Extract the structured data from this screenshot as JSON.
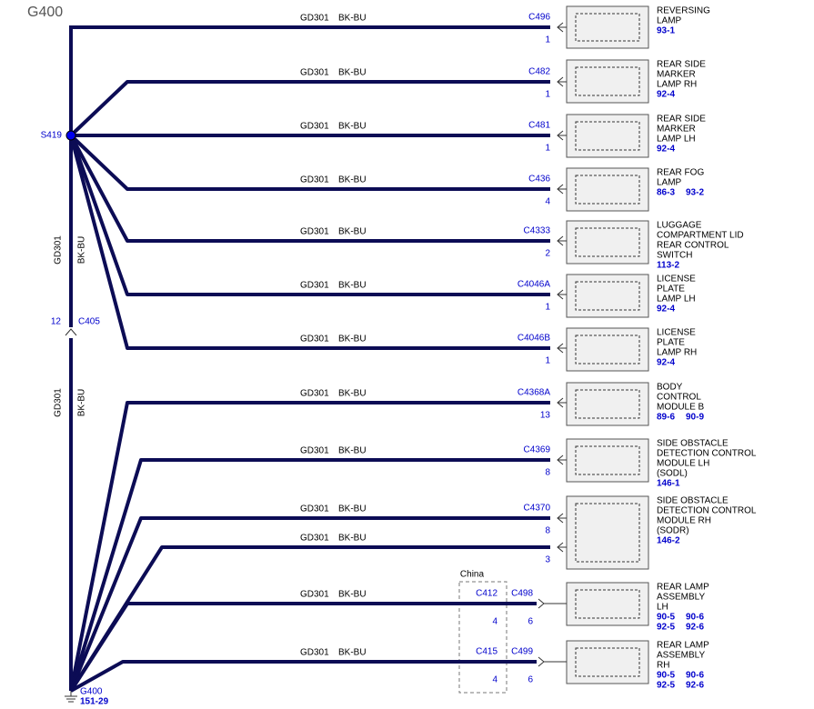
{
  "title": "G400",
  "splice": "S419",
  "trunk": {
    "upper": {
      "circuit": "GD301",
      "color": "BK-BU"
    },
    "connector": {
      "pin": "12",
      "name": "C405"
    },
    "lower": {
      "circuit": "GD301",
      "color": "BK-BU"
    }
  },
  "ground": {
    "name": "G400",
    "ref": "151-29"
  },
  "option_box": "China",
  "components": [
    {
      "label": [
        "REVERSING",
        "LAMP"
      ],
      "refs": [
        "93-1"
      ],
      "wires": [
        {
          "circuit": "GD301",
          "color": "BK-BU",
          "connector": "C496",
          "pin": "1"
        }
      ]
    },
    {
      "label": [
        "REAR SIDE",
        "MARKER",
        "LAMP RH"
      ],
      "refs": [
        "92-4"
      ],
      "wires": [
        {
          "circuit": "GD301",
          "color": "BK-BU",
          "connector": "C482",
          "pin": "1"
        }
      ]
    },
    {
      "label": [
        "REAR SIDE",
        "MARKER",
        "LAMP LH"
      ],
      "refs": [
        "92-4"
      ],
      "wires": [
        {
          "circuit": "GD301",
          "color": "BK-BU",
          "connector": "C481",
          "pin": "1"
        }
      ]
    },
    {
      "label": [
        "REAR FOG",
        "LAMP"
      ],
      "refs": [
        "86-3",
        "93-2"
      ],
      "wires": [
        {
          "circuit": "GD301",
          "color": "BK-BU",
          "connector": "C436",
          "pin": "4"
        }
      ]
    },
    {
      "label": [
        "LUGGAGE",
        "COMPARTMENT LID",
        "REAR CONTROL",
        "SWITCH"
      ],
      "refs": [
        "113-2"
      ],
      "wires": [
        {
          "circuit": "GD301",
          "color": "BK-BU",
          "connector": "C4333",
          "pin": "2"
        }
      ]
    },
    {
      "label": [
        "LICENSE",
        "PLATE",
        "LAMP LH"
      ],
      "refs": [
        "92-4"
      ],
      "wires": [
        {
          "circuit": "GD301",
          "color": "BK-BU",
          "connector": "C4046A",
          "pin": "1"
        }
      ]
    },
    {
      "label": [
        "LICENSE",
        "PLATE",
        "LAMP RH"
      ],
      "refs": [
        "92-4"
      ],
      "wires": [
        {
          "circuit": "GD301",
          "color": "BK-BU",
          "connector": "C4046B",
          "pin": "1"
        }
      ]
    },
    {
      "label": [
        "BODY",
        "CONTROL",
        "MODULE B"
      ],
      "refs": [
        "89-6",
        "90-9"
      ],
      "wires": [
        {
          "circuit": "GD301",
          "color": "BK-BU",
          "connector": "C4368A",
          "pin": "13"
        }
      ]
    },
    {
      "label": [
        "SIDE OBSTACLE",
        "DETECTION CONTROL",
        "MODULE LH",
        "(SODL)"
      ],
      "refs": [
        "146-1"
      ],
      "wires": [
        {
          "circuit": "GD301",
          "color": "BK-BU",
          "connector": "C4369",
          "pin": "8"
        }
      ]
    },
    {
      "label": [
        "SIDE OBSTACLE",
        "DETECTION CONTROL",
        "MODULE RH",
        "(SODR)"
      ],
      "refs": [
        "146-2"
      ],
      "wires": [
        {
          "circuit": "GD301",
          "color": "BK-BU",
          "connector": "C4370",
          "pin": "8"
        },
        {
          "circuit": "GD301",
          "color": "BK-BU",
          "pin": "3"
        }
      ]
    },
    {
      "label": [
        "REAR LAMP",
        "ASSEMBLY",
        "LH"
      ],
      "refs": [
        "90-5",
        "90-6",
        "92-5",
        "92-6"
      ],
      "wires": [
        {
          "circuit": "GD301",
          "color": "BK-BU",
          "connector": "C498",
          "pin": "6",
          "inline": {
            "connector": "C412",
            "pin": "4"
          }
        }
      ]
    },
    {
      "label": [
        "REAR LAMP",
        "ASSEMBLY",
        "RH"
      ],
      "refs": [
        "90-5",
        "90-6",
        "92-5",
        "92-6"
      ],
      "wires": [
        {
          "circuit": "GD301",
          "color": "BK-BU",
          "connector": "C499",
          "pin": "6",
          "inline": {
            "connector": "C415",
            "pin": "4"
          }
        }
      ]
    }
  ]
}
